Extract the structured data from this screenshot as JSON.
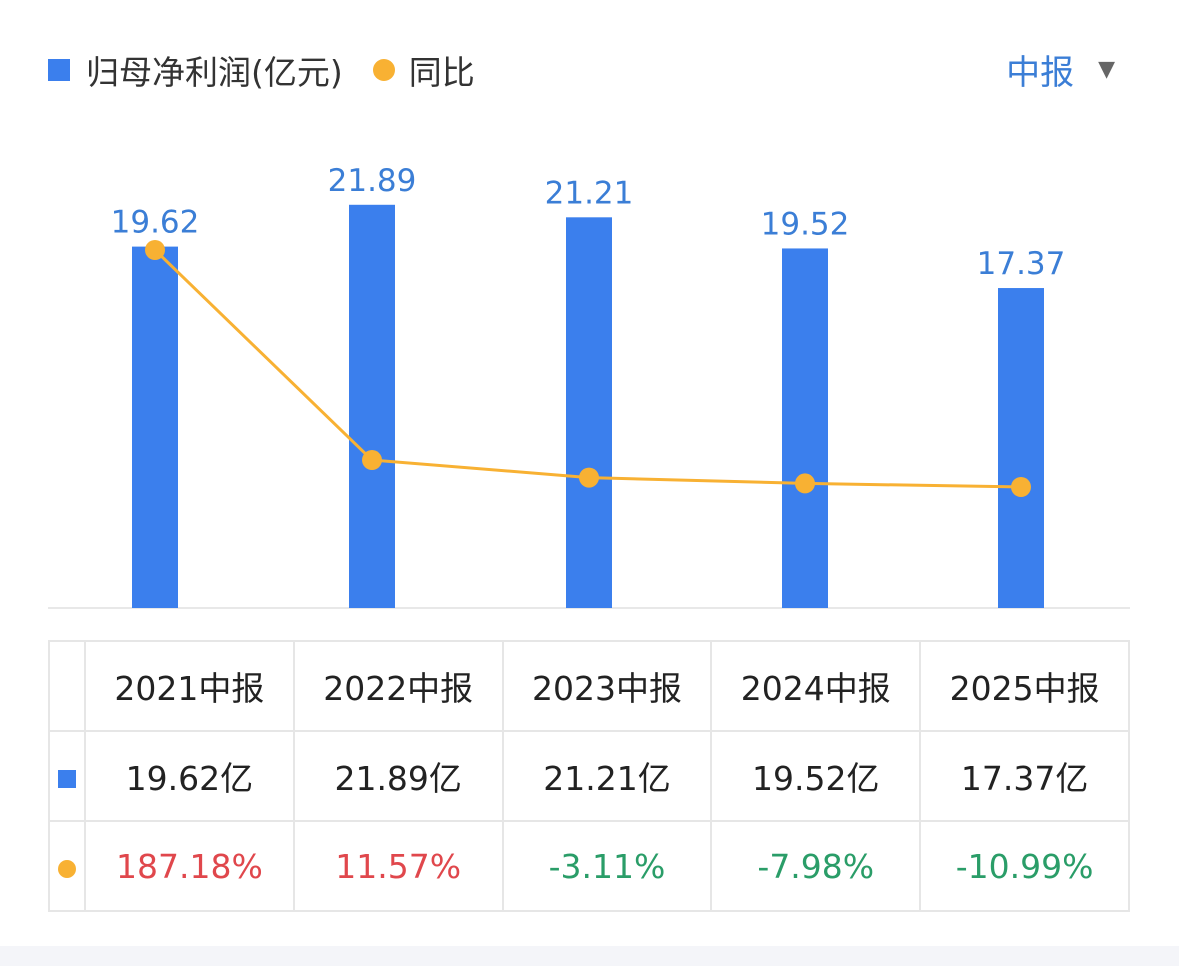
{
  "legend": {
    "bar_label": "归母净利润(亿元)",
    "line_label": "同比"
  },
  "period_selector": {
    "label": "中报",
    "caret": "▼"
  },
  "colors": {
    "bar": "#3b7fed",
    "line": "#f8b133",
    "positive": "#e0474c",
    "negative": "#2a9d68",
    "value_label": "#3b7ed6"
  },
  "chart_data": {
    "type": "bar",
    "categories": [
      "2021中报",
      "2022中报",
      "2023中报",
      "2024中报",
      "2025中报"
    ],
    "series": [
      {
        "name": "归母净利润(亿元)",
        "type": "bar",
        "values": [
          19.62,
          21.89,
          21.21,
          19.52,
          17.37
        ]
      },
      {
        "name": "同比",
        "type": "line",
        "values": [
          187.18,
          11.57,
          -3.11,
          -7.98,
          -10.99
        ]
      }
    ],
    "data_labels": [
      "19.62",
      "21.89",
      "21.21",
      "19.52",
      "17.37"
    ],
    "grid": false
  },
  "table": {
    "headers": [
      "2021中报",
      "2022中报",
      "2023中报",
      "2024中报",
      "2025中报"
    ],
    "bar_row": [
      "19.62亿",
      "21.89亿",
      "21.21亿",
      "19.52亿",
      "17.37亿"
    ],
    "line_row": [
      "187.18%",
      "11.57%",
      "-3.11%",
      "-7.98%",
      "-10.99%"
    ]
  }
}
